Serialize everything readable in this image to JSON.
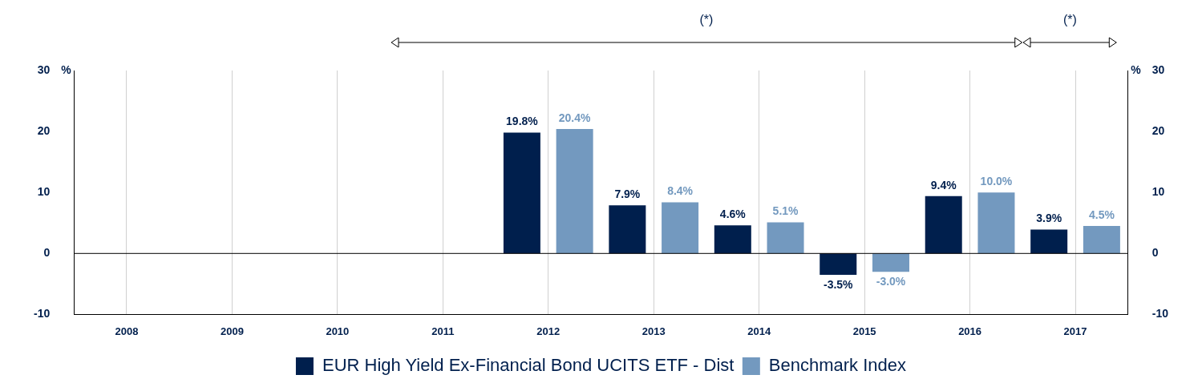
{
  "chart_data": {
    "type": "bar",
    "categories": [
      "2008",
      "2009",
      "2010",
      "2011",
      "2012",
      "2013",
      "2014",
      "2015",
      "2016",
      "2017"
    ],
    "series": [
      {
        "name": "EUR High Yield Ex-Financial Bond UCITS ETF - Dist",
        "color": "#001f4d",
        "values": [
          null,
          null,
          null,
          null,
          19.8,
          7.9,
          4.6,
          -3.5,
          9.4,
          3.9
        ],
        "value_labels": [
          null,
          null,
          null,
          null,
          "19.8%",
          "7.9%",
          "4.6%",
          "-3.5%",
          "9.4%",
          "3.9%"
        ]
      },
      {
        "name": "Benchmark Index",
        "color": "#7399bf",
        "values": [
          null,
          null,
          null,
          null,
          20.4,
          8.4,
          5.1,
          -3.0,
          10.0,
          4.5
        ],
        "value_labels": [
          null,
          null,
          null,
          null,
          "20.4%",
          "8.4%",
          "5.1%",
          "-3.0%",
          "10.0%",
          "4.5%"
        ]
      }
    ],
    "ylim": [
      -10,
      30
    ],
    "yticks": [
      -10,
      0,
      10,
      20,
      30
    ],
    "y2lim": [
      -10,
      30
    ],
    "y2ticks": [
      -10,
      0,
      10,
      20,
      30
    ],
    "ylabel": "%",
    "y2label": "%",
    "annotations": [
      "(*)",
      "(*)"
    ],
    "ref_lines": [
      {
        "axis": "y",
        "value": 0,
        "color": "#000000"
      }
    ],
    "grid": "x",
    "legend": "bottom"
  }
}
